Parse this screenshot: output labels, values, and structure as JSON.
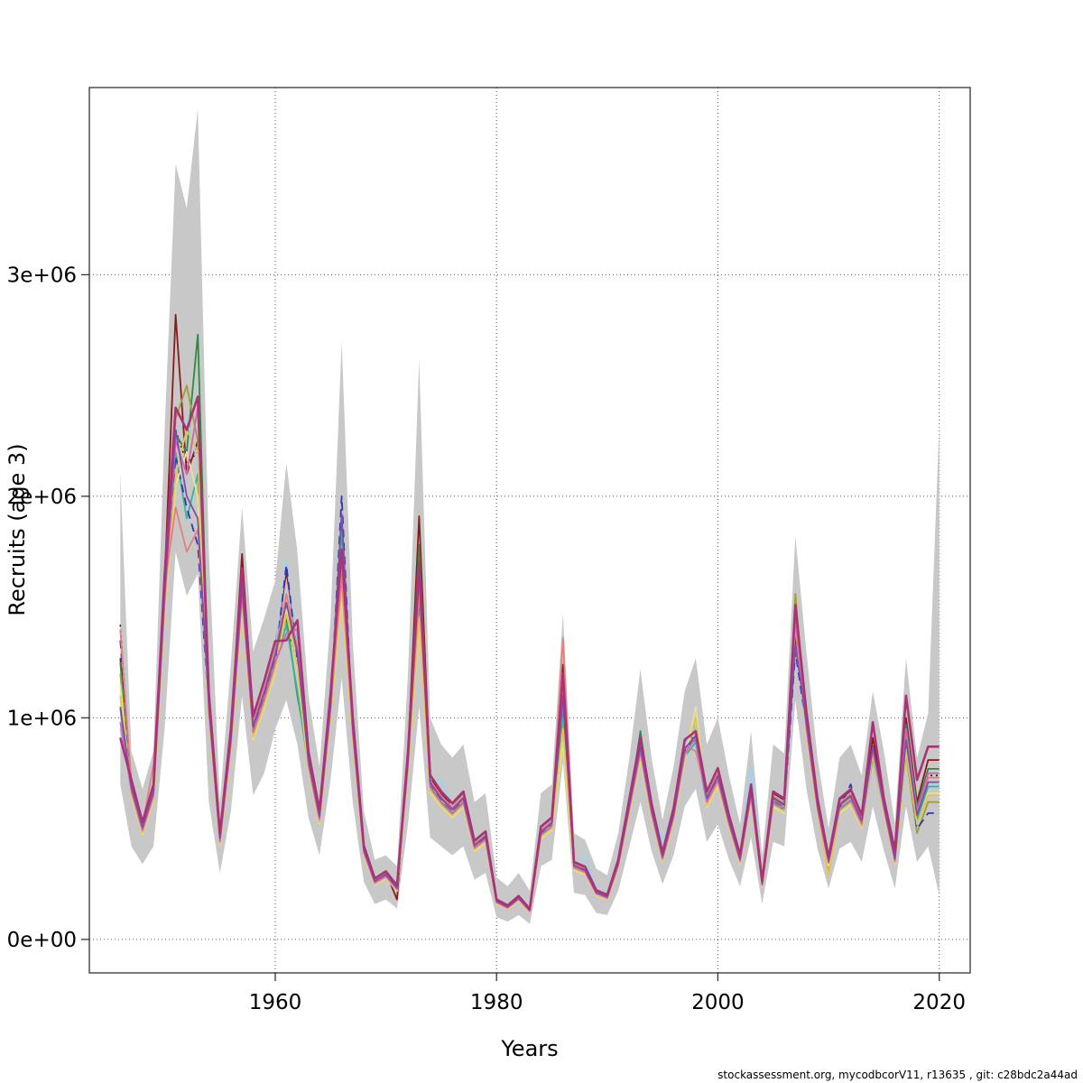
{
  "figure": {
    "xlabel": "Years",
    "ylabel": "Recruits (age 3)",
    "footer": "stockassessment.org, mycodbcorV11, r13635 , git: c28bdc2a44ad"
  },
  "chart_data": {
    "type": "line",
    "title": "",
    "xlabel": "Years",
    "ylabel": "Recruits (age 3)",
    "units": "recruits in millions (axis shows 0e+00 to 3e+06)",
    "x_range": [
      1943.2,
      2022.8
    ],
    "y_range": [
      -0.151,
      3.845
    ],
    "grid": true,
    "grid_color": "#555555",
    "band_color": "#c8c8c8",
    "box_color": "#333333",
    "legend": "none",
    "x_ticks": [
      {
        "label": "1960",
        "value": 1960
      },
      {
        "label": "1980",
        "value": 1980
      },
      {
        "label": "2000",
        "value": 2000
      },
      {
        "label": "2020",
        "value": 2020
      }
    ],
    "y_ticks": [
      {
        "label": "0e+00",
        "value": 0
      },
      {
        "label": "1e+06",
        "value": 1
      },
      {
        "label": "2e+06",
        "value": 2
      },
      {
        "label": "3e+06",
        "value": 3
      }
    ],
    "years": [
      1946,
      1947,
      1948,
      1949,
      1950,
      1951,
      1952,
      1953,
      1954,
      1955,
      1956,
      1957,
      1958,
      1959,
      1960,
      1961,
      1962,
      1963,
      1964,
      1965,
      1966,
      1967,
      1968,
      1969,
      1970,
      1971,
      1972,
      1973,
      1974,
      1975,
      1976,
      1977,
      1978,
      1979,
      1980,
      1981,
      1982,
      1983,
      1984,
      1985,
      1986,
      1987,
      1988,
      1989,
      1990,
      1991,
      1992,
      1993,
      1994,
      1995,
      1996,
      1997,
      1998,
      1999,
      2000,
      2001,
      2002,
      2003,
      2004,
      2005,
      2006,
      2007,
      2008,
      2009,
      2010,
      2011,
      2012,
      2013,
      2014,
      2015,
      2016,
      2017,
      2018,
      2019,
      2020
    ],
    "base": [
      1.2,
      0.68,
      0.5,
      0.66,
      1.55,
      2.25,
      2.1,
      2.2,
      1.05,
      0.45,
      0.9,
      1.58,
      0.95,
      1.1,
      1.27,
      1.5,
      1.28,
      0.8,
      0.55,
      1.05,
      1.7,
      0.95,
      0.4,
      0.26,
      0.29,
      0.23,
      0.8,
      1.6,
      0.7,
      0.63,
      0.58,
      0.63,
      0.42,
      0.46,
      0.17,
      0.145,
      0.185,
      0.13,
      0.48,
      0.52,
      1.12,
      0.33,
      0.31,
      0.21,
      0.19,
      0.34,
      0.6,
      0.86,
      0.58,
      0.37,
      0.56,
      0.85,
      0.93,
      0.63,
      0.73,
      0.53,
      0.36,
      0.66,
      0.25,
      0.63,
      0.6,
      1.44,
      0.97,
      0.6,
      0.35,
      0.6,
      0.64,
      0.53,
      0.86,
      0.6,
      0.36,
      0.92,
      0.55,
      0.71,
      0.71
    ],
    "band": {
      "upper": [
        2.1,
        0.85,
        0.68,
        0.85,
        2.3,
        3.5,
        3.3,
        3.75,
        1.75,
        0.62,
        1.25,
        1.95,
        1.3,
        1.45,
        1.62,
        2.15,
        1.75,
        1.1,
        0.78,
        1.45,
        2.7,
        1.35,
        0.58,
        0.36,
        0.38,
        0.33,
        1.2,
        2.62,
        1.0,
        0.88,
        0.82,
        0.88,
        0.62,
        0.66,
        0.28,
        0.24,
        0.3,
        0.22,
        0.66,
        0.7,
        1.47,
        0.48,
        0.45,
        0.32,
        0.29,
        0.48,
        0.82,
        1.22,
        0.82,
        0.54,
        0.78,
        1.12,
        1.27,
        0.88,
        1.0,
        0.74,
        0.52,
        0.94,
        0.38,
        0.88,
        0.84,
        1.82,
        1.3,
        0.82,
        0.5,
        0.82,
        0.88,
        0.74,
        1.12,
        0.85,
        0.52,
        1.27,
        0.82,
        1.02,
        2.32
      ],
      "lower": [
        0.7,
        0.42,
        0.34,
        0.42,
        0.95,
        1.75,
        1.55,
        1.65,
        0.62,
        0.3,
        0.58,
        1.1,
        0.65,
        0.75,
        0.95,
        1.08,
        0.88,
        0.55,
        0.38,
        0.72,
        1.18,
        0.62,
        0.26,
        0.16,
        0.18,
        0.14,
        0.52,
        1.05,
        0.46,
        0.42,
        0.38,
        0.42,
        0.27,
        0.3,
        0.1,
        0.08,
        0.11,
        0.07,
        0.33,
        0.36,
        0.8,
        0.21,
        0.2,
        0.12,
        0.11,
        0.22,
        0.42,
        0.62,
        0.4,
        0.25,
        0.38,
        0.6,
        0.68,
        0.44,
        0.52,
        0.36,
        0.24,
        0.46,
        0.16,
        0.44,
        0.42,
        1.08,
        0.68,
        0.41,
        0.23,
        0.41,
        0.44,
        0.35,
        0.6,
        0.4,
        0.23,
        0.6,
        0.35,
        0.42,
        0.2
      ]
    },
    "series": [
      {
        "name": "run-black",
        "color": "#1a1a1a",
        "dash": "2 4",
        "width": 1.6,
        "spread": -0.02,
        "overrides": {
          "1946": 1.42,
          "1951": 2.3,
          "1952": 2.15,
          "1953": 2.2,
          "1961": 1.42,
          "1966": 1.68,
          "1973": 1.55,
          "1986": 1.12,
          "1998": 0.97,
          "2007": 1.37,
          "2014": 0.88,
          "2017": 0.92,
          "2018": 0.56,
          "2019": 0.74,
          "2020": 0.74
        }
      },
      {
        "name": "run-darkred",
        "color": "#8B1A1A",
        "dash": "",
        "width": 1.8,
        "spread": 0.045,
        "overrides": {
          "1946": 1.27,
          "1951": 2.82,
          "1952": 2.1,
          "1953": 2.25,
          "1957": 1.74,
          "1961": 1.66,
          "1966": 1.62,
          "1971": 0.18,
          "1973": 1.91,
          "1986": 1.24,
          "1998": 0.96,
          "2007": 1.38,
          "2014": 0.91,
          "2017": 1.0,
          "2018": 0.62,
          "2019": 0.81,
          "2020": 0.81
        }
      },
      {
        "name": "run-green",
        "color": "#2E8B44",
        "dash": "",
        "width": 1.8,
        "spread": 0.02,
        "overrides": {
          "1946": 1.25,
          "1951": 2.28,
          "1952": 2.2,
          "1953": 2.73,
          "1957": 1.66,
          "1961": 1.45,
          "1962": 1.1,
          "1966": 1.6,
          "1973": 1.78,
          "1986": 1.05,
          "1993": 0.94,
          "1998": 0.9,
          "2007": 1.4,
          "2014": 0.82,
          "2017": 0.97,
          "2018": 0.6,
          "2019": 0.77,
          "2020": 0.77
        }
      },
      {
        "name": "run-olive",
        "color": "#9FA032",
        "dash": "",
        "width": 1.8,
        "spread": 0.005,
        "overrides": {
          "1946": 1.2,
          "1951": 2.35,
          "1952": 2.5,
          "1953": 2.25,
          "1961": 1.5,
          "1966": 1.65,
          "1973": 1.52,
          "1986": 1.0,
          "1998": 0.92,
          "2007": 1.56,
          "2010": 0.3,
          "2014": 0.84,
          "2017": 0.84,
          "2018": 0.48,
          "2019": 0.62,
          "2020": 0.62
        }
      },
      {
        "name": "run-skyblue",
        "color": "#9AD4F0",
        "dash": "",
        "width": 1.8,
        "spread": 0.035,
        "overrides": {
          "1946": 0.95,
          "1951": 2.3,
          "1952": 2.35,
          "1953": 2.15,
          "1961": 1.71,
          "1966": 1.8,
          "1975": 0.72,
          "1988": 0.38,
          "1995": 0.44,
          "2003": 0.79,
          "2007": 1.44,
          "2014": 0.84,
          "2017": 0.9,
          "2018": 0.58,
          "2019": 0.7,
          "2020": 0.7
        }
      },
      {
        "name": "run-teal",
        "color": "#35B3A2",
        "dash": "",
        "width": 1.8,
        "spread": -0.03,
        "overrides": {
          "1946": 1.04,
          "1951": 2.2,
          "1952": 1.9,
          "1953": 2.1,
          "1961": 1.42,
          "1962": 1.12,
          "1966": 1.85,
          "1973": 1.58,
          "1986": 1.06,
          "1998": 0.89,
          "2007": 1.46,
          "2014": 0.82,
          "2017": 0.88,
          "2018": 0.54,
          "2019": 0.69,
          "2020": 0.69
        }
      },
      {
        "name": "run-navy",
        "color": "#3434AC",
        "dash": "9 6",
        "width": 1.8,
        "spread": -0.01,
        "overrides": {
          "1946": 1.35,
          "1951": 2.18,
          "1952": 1.95,
          "1953": 1.78,
          "1961": 1.69,
          "1966": 2.0,
          "1973": 1.55,
          "1986": 1.1,
          "1998": 0.93,
          "2007": 1.3,
          "2012": 0.7,
          "2014": 0.86,
          "2017": 0.87,
          "2018": 0.5,
          "2019": 0.57,
          "2020": 0.57
        }
      },
      {
        "name": "run-khaki",
        "color": "#E7E293",
        "dash": "",
        "width": 1.8,
        "spread": -0.05,
        "overrides": {
          "1946": 1.15,
          "1951": 2.05,
          "1952": 2.2,
          "1953": 2.0,
          "1961": 1.49,
          "1966": 1.55,
          "1973": 1.43,
          "1986": 0.89,
          "1998": 1.05,
          "2007": 1.48,
          "2014": 0.85,
          "2017": 0.86,
          "2018": 0.52,
          "2019": 0.66,
          "2020": 0.66
        }
      },
      {
        "name": "run-gold",
        "color": "#E3C44F",
        "dash": "",
        "width": 1.8,
        "spread": -0.038,
        "overrides": {
          "1946": 1.1,
          "1951": 2.1,
          "1952": 2.3,
          "1953": 2.2,
          "1961": 1.47,
          "1966": 1.58,
          "1973": 1.45,
          "1986": 0.95,
          "1998": 1.0,
          "2007": 1.42,
          "2010": 0.29,
          "2014": 0.83,
          "2017": 0.85,
          "2018": 0.52,
          "2019": 0.65,
          "2020": 0.65
        }
      },
      {
        "name": "run-salmon",
        "color": "#E57E7E",
        "dash": "",
        "width": 1.8,
        "spread": 0.028,
        "overrides": {
          "1946": 1.4,
          "1949": 0.79,
          "1951": 1.95,
          "1952": 1.75,
          "1953": 1.85,
          "1961": 1.56,
          "1966": 1.63,
          "1973": 1.56,
          "1986": 1.36,
          "1998": 0.85,
          "2007": 1.43,
          "2014": 0.85,
          "2017": 0.93,
          "2018": 0.57,
          "2019": 0.73,
          "2020": 0.73
        }
      },
      {
        "name": "run-orchid",
        "color": "#D465B4",
        "dash": "",
        "width": 1.8,
        "spread": -0.015,
        "overrides": {
          "1946": 0.98,
          "1951": 2.25,
          "1952": 2.1,
          "1953": 2.4,
          "1961": 1.38,
          "1962": 1.4,
          "1966": 1.72,
          "1973": 1.66,
          "1986": 1.18,
          "1998": 0.91,
          "2007": 1.45,
          "2014": 0.86,
          "2017": 0.95,
          "2018": 0.58,
          "2019": 0.75,
          "2020": 0.75
        }
      },
      {
        "name": "run-purple",
        "color": "#7C4FA5",
        "dash": "",
        "width": 1.8,
        "spread": 0.012,
        "overrides": {
          "1946": 1.05,
          "1951": 2.3,
          "1952": 2.0,
          "1953": 1.9,
          "1961": 1.52,
          "1966": 1.92,
          "1973": 1.64,
          "1986": 1.1,
          "1998": 0.92,
          "2007": 1.33,
          "2014": 0.87,
          "2017": 0.9,
          "2018": 0.56,
          "2019": 0.71,
          "2020": 0.71
        }
      },
      {
        "name": "run-violetred",
        "color": "#AA3377",
        "dash": "",
        "width": 2.6,
        "spread": 0.06,
        "overrides": {
          "1946": 0.91,
          "1951": 2.4,
          "1952": 2.3,
          "1953": 2.45,
          "1961": 1.35,
          "1962": 1.44,
          "1966": 1.76,
          "1973": 1.7,
          "1986": 1.2,
          "1998": 0.94,
          "2007": 1.51,
          "2014": 0.98,
          "2016": 0.4,
          "2017": 1.1,
          "2018": 0.72,
          "2019": 0.87,
          "2020": 0.87
        }
      }
    ]
  }
}
